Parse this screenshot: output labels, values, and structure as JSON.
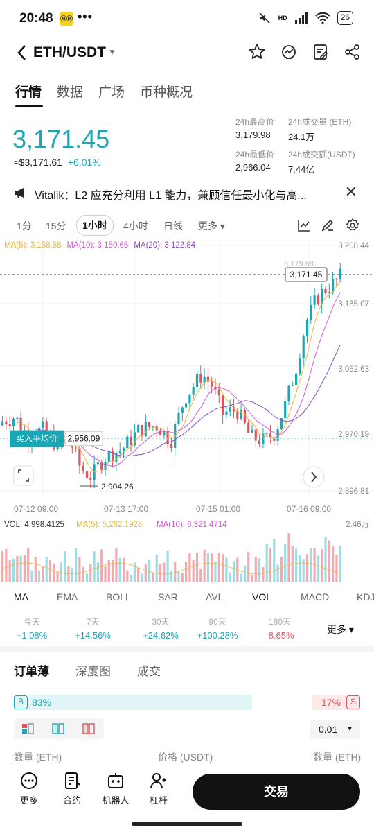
{
  "status": {
    "time": "20:48",
    "battery": "26",
    "app_badge": "ⓂⓂ",
    "dots": "•••",
    "hd": "HD"
  },
  "nav": {
    "pair": "ETH/USDT"
  },
  "tabs": [
    "行情",
    "数据",
    "广场",
    "币种概况"
  ],
  "ticker": {
    "last_price": "3,171.45",
    "fiat_price": "≈$3,171.61",
    "change": "+6.01%",
    "high_label": "24h最高价",
    "high": "3,179.98",
    "low_label": "24h最低价",
    "low": "2,966.04",
    "vol_label": "24h成交量 (ETH)",
    "vol": "24.1万",
    "amt_label": "24h成交额(USDT)",
    "amt": "7.44亿"
  },
  "notice": {
    "text": "Vitalik：L2 应充分利用 L1 能力，兼顾信任最小化与高..."
  },
  "intervals": [
    "1分",
    "15分",
    "1小时",
    "4小时",
    "日线",
    "更多"
  ],
  "active_interval": "1小时",
  "ma": {
    "ma5": "MA(5): 3,158.58",
    "ma10": "MA(10): 3,150.65",
    "ma20": "MA(20): 3,122.84"
  },
  "colors": {
    "up": "#1aa7b5",
    "down": "#e0545f",
    "ma5": "#e8b83c",
    "ma10": "#d05bd8",
    "ma20": "#8b4db8"
  },
  "chart_data": {
    "type": "candlestick",
    "y_ticks": [
      "3,208.44",
      "3,135.07",
      "3,052.63",
      "2,970.19",
      "2,896.81"
    ],
    "x_ticks": [
      "07-12 09:00",
      "07-13 17:00",
      "07-15 01:00",
      "07-16 09:00"
    ],
    "last_price_tag": "3,171.45",
    "peak_tag_partial": "3,179.98",
    "avg_buy_label": "买入平均价",
    "avg_buy_price": "2,956.09",
    "low_marker": "2,904.26",
    "volume": {
      "vol": "VOL: 4,998.4125",
      "ma5": "MA(5): 5,262.1928",
      "ma10": "MA(10): 6,321.4714",
      "axis_max": "2.46万"
    }
  },
  "indicators": [
    "MA",
    "EMA",
    "BOLL",
    "SAR",
    "AVL",
    "VOL",
    "MACD",
    "KDJ"
  ],
  "active_indicator": "VOL",
  "performance": [
    {
      "label": "今天",
      "value": "+1.08%"
    },
    {
      "label": "7天",
      "value": "+14.56%"
    },
    {
      "label": "30天",
      "value": "+24.62%"
    },
    {
      "label": "90天",
      "value": "+100.28%"
    },
    {
      "label": "180天",
      "value": "-8.65%"
    }
  ],
  "performance_more": "更多",
  "orderbook": {
    "tabs": [
      "订单薄",
      "深度图",
      "成交"
    ],
    "buy_badge": "B",
    "buy_pct": "83%",
    "buy_ratio": 0.83,
    "sell_badge": "S",
    "sell_pct": "17%",
    "precision": "0.01",
    "col_qty": "数量 (ETH)",
    "col_price": "价格 (USDT)",
    "col_qty2": "数量 (ETH)"
  },
  "bottom": {
    "more": "更多",
    "contract": "合约",
    "bot": "机器人",
    "leverage": "杠杆",
    "trade": "交易"
  }
}
